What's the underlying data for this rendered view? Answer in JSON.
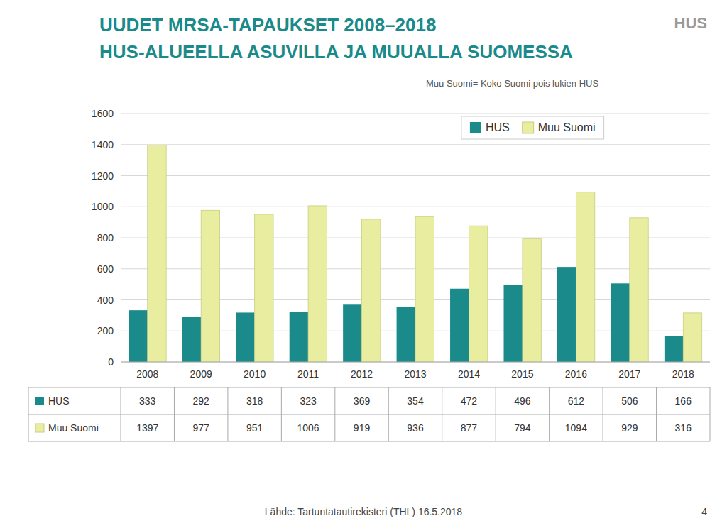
{
  "chart_data": {
    "type": "bar",
    "title": "UUDET MRSA-TAPAUKSET 2008–2018\nHUS-ALUEELLA ASUVILLA JA MUUALLA SUOMESSA",
    "subtitle": "Muu Suomi= Koko Suomi pois lukien HUS",
    "annotations": [
      "Lähde: Tartuntatautirekisteri (THL) 16.5.2018",
      "4",
      "HUS"
    ],
    "categories": [
      "2008",
      "2009",
      "2010",
      "2011",
      "2012",
      "2013",
      "2014",
      "2015",
      "2016",
      "2017",
      "2018"
    ],
    "series": [
      {
        "name": "HUS",
        "color": "#1a8a8a",
        "values": [
          333,
          292,
          318,
          323,
          369,
          354,
          472,
          496,
          612,
          506,
          166
        ]
      },
      {
        "name": "Muu Suomi",
        "color": "#e8eda0",
        "values": [
          1397,
          977,
          951,
          1006,
          919,
          936,
          877,
          794,
          1094,
          929,
          316
        ]
      }
    ],
    "ylim": [
      0,
      1600
    ],
    "yticks": [
      0,
      200,
      400,
      600,
      800,
      1000,
      1200,
      1400,
      1600
    ],
    "grid": true,
    "legend": "top-right"
  }
}
